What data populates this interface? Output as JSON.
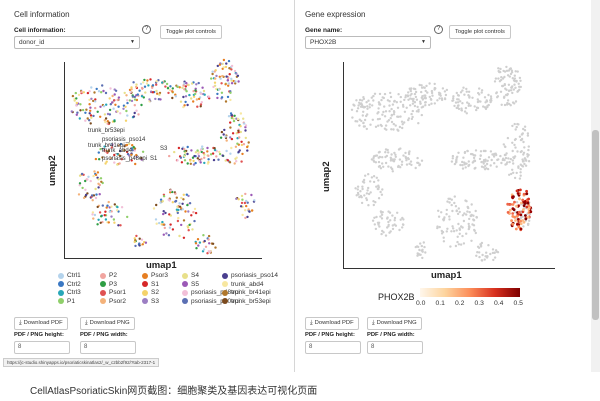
{
  "left_panel": {
    "section_title": "Cell information",
    "field_label": "Cell information:",
    "help_icon": "?",
    "select_value": "donor_id",
    "toggle_label": "Toggle plot controls",
    "xlabel": "umap1",
    "ylabel": "umap2",
    "cluster_labels": [
      "trunk_br53epi",
      "psoriasis_pso14",
      "trunk_br41epi",
      "trunk_abd4",
      "psoriasis_p48epi",
      "S1",
      "S3"
    ],
    "legend": [
      {
        "label": "Ctrl1",
        "color": "#b4d3ec"
      },
      {
        "label": "Ctrl2",
        "color": "#3a78c3"
      },
      {
        "label": "Ctrl3",
        "color": "#28a7b8"
      },
      {
        "label": "P1",
        "color": "#8fcf6a"
      },
      {
        "label": "P2",
        "color": "#f1a5a0"
      },
      {
        "label": "P3",
        "color": "#2e9e44"
      },
      {
        "label": "Psor1",
        "color": "#e05252"
      },
      {
        "label": "Psor2",
        "color": "#f4b27a"
      },
      {
        "label": "Psor3",
        "color": "#e67e22"
      },
      {
        "label": "S1",
        "color": "#d62728"
      },
      {
        "label": "S2",
        "color": "#f5d36b"
      },
      {
        "label": "S3",
        "color": "#9c7ec3"
      },
      {
        "label": "S4",
        "color": "#e8e08a"
      },
      {
        "label": "S5",
        "color": "#9b59b6"
      },
      {
        "label": "psoriasis_p48epi",
        "color": "#f2c0d8"
      },
      {
        "label": "psoriasis_p40epi",
        "color": "#5b6fb3"
      },
      {
        "label": "psoriasis_pso14",
        "color": "#4a3f8f"
      },
      {
        "label": "trunk_abd4",
        "color": "#f7e7a0"
      },
      {
        "label": "trunk_br41epi",
        "color": "#b0772b"
      },
      {
        "label": "trunk_br53epi",
        "color": "#7b4a1e"
      }
    ],
    "download_pdf": "Download PDF",
    "download_png": "Download PNG",
    "height_label": "PDF / PNG height:",
    "width_label": "PDF / PNG width:",
    "height_value": "8",
    "width_value": "8",
    "status_url": "https://jc-studio.shinyapps.io/psoriaticskinatlas2/_w_c2bb2f92/?tab-2317-1"
  },
  "right_panel": {
    "section_title": "Gene expression",
    "field_label": "Gene name:",
    "help_icon": "?",
    "select_value": "PHOX2B",
    "toggle_label": "Toggle plot controls",
    "xlabel": "umap1",
    "ylabel": "umap2",
    "colorbar_title": "PHOX2B",
    "colorbar_ticks": [
      "0.0",
      "0.1",
      "0.2",
      "0.3",
      "0.4",
      "0.5"
    ],
    "download_pdf": "Download PDF",
    "download_png": "Download PNG",
    "height_label": "PDF / PNG height:",
    "width_label": "PDF / PNG width:",
    "height_value": "8",
    "width_value": "8"
  },
  "caption": "CellAtlasPsoriaticSkin网页截图：细胞聚类及基因表达可视化页面",
  "icons": {
    "download": "download-icon",
    "caret": "chevron-down-icon",
    "help": "help-icon"
  }
}
